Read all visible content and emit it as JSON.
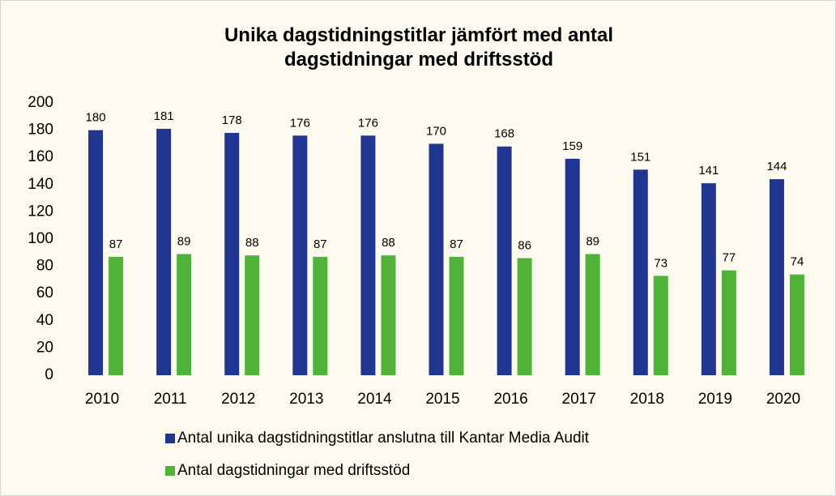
{
  "chart_data": {
    "type": "bar",
    "title": "Unika dagstidningstitlar jämfört med antal dagstidningar med driftsstöd",
    "categories": [
      "2010",
      "2011",
      "2012",
      "2013",
      "2014",
      "2015",
      "2016",
      "2017",
      "2018",
      "2019",
      "2020"
    ],
    "series": [
      {
        "name": "Antal unika dagstidningstitlar anslutna till Kantar Media Audit",
        "color": "#213592",
        "values": [
          180,
          181,
          178,
          176,
          176,
          170,
          168,
          159,
          151,
          141,
          144
        ]
      },
      {
        "name": "Antal dagstidningar med driftsstöd",
        "color": "#4eb338",
        "values": [
          87,
          89,
          88,
          87,
          88,
          87,
          86,
          89,
          73,
          77,
          74
        ]
      }
    ],
    "ylim": [
      0,
      200
    ],
    "yticks": [
      0,
      20,
      40,
      60,
      80,
      100,
      120,
      140,
      160,
      180,
      200
    ],
    "grid": false,
    "legend": "bottom"
  }
}
